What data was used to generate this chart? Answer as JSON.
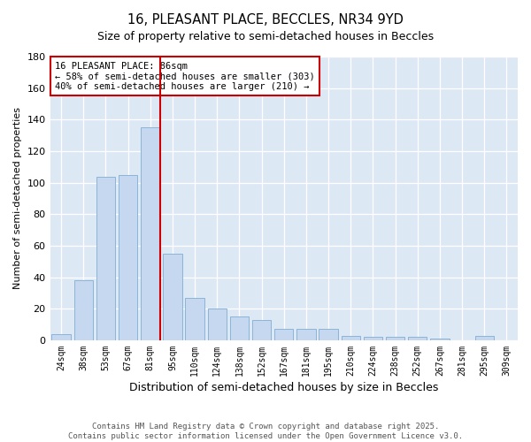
{
  "title": "16, PLEASANT PLACE, BECCLES, NR34 9YD",
  "subtitle": "Size of property relative to semi-detached houses in Beccles",
  "xlabel": "Distribution of semi-detached houses by size in Beccles",
  "ylabel": "Number of semi-detached properties",
  "categories": [
    "24sqm",
    "38sqm",
    "53sqm",
    "67sqm",
    "81sqm",
    "95sqm",
    "110sqm",
    "124sqm",
    "138sqm",
    "152sqm",
    "167sqm",
    "181sqm",
    "195sqm",
    "210sqm",
    "224sqm",
    "238sqm",
    "252sqm",
    "267sqm",
    "281sqm",
    "295sqm",
    "309sqm"
  ],
  "values": [
    4,
    38,
    104,
    105,
    135,
    55,
    27,
    20,
    15,
    13,
    7,
    7,
    7,
    3,
    2,
    2,
    2,
    1,
    0,
    3,
    0
  ],
  "bar_color": "#c5d8f0",
  "bar_edge_color": "#8ab4d8",
  "annotation_text": "16 PLEASANT PLACE: 86sqm\n← 58% of semi-detached houses are smaller (303)\n40% of semi-detached houses are larger (210) →",
  "annotation_box_color": "#ffffff",
  "annotation_box_edge": "#cc0000",
  "line_color": "#cc0000",
  "footer": "Contains HM Land Registry data © Crown copyright and database right 2025.\nContains public sector information licensed under the Open Government Licence v3.0.",
  "ylim": [
    0,
    180
  ],
  "yticks": [
    0,
    20,
    40,
    60,
    80,
    100,
    120,
    140,
    160,
    180
  ],
  "bg_color": "#ffffff",
  "plot_bg_color": "#dde8f5"
}
